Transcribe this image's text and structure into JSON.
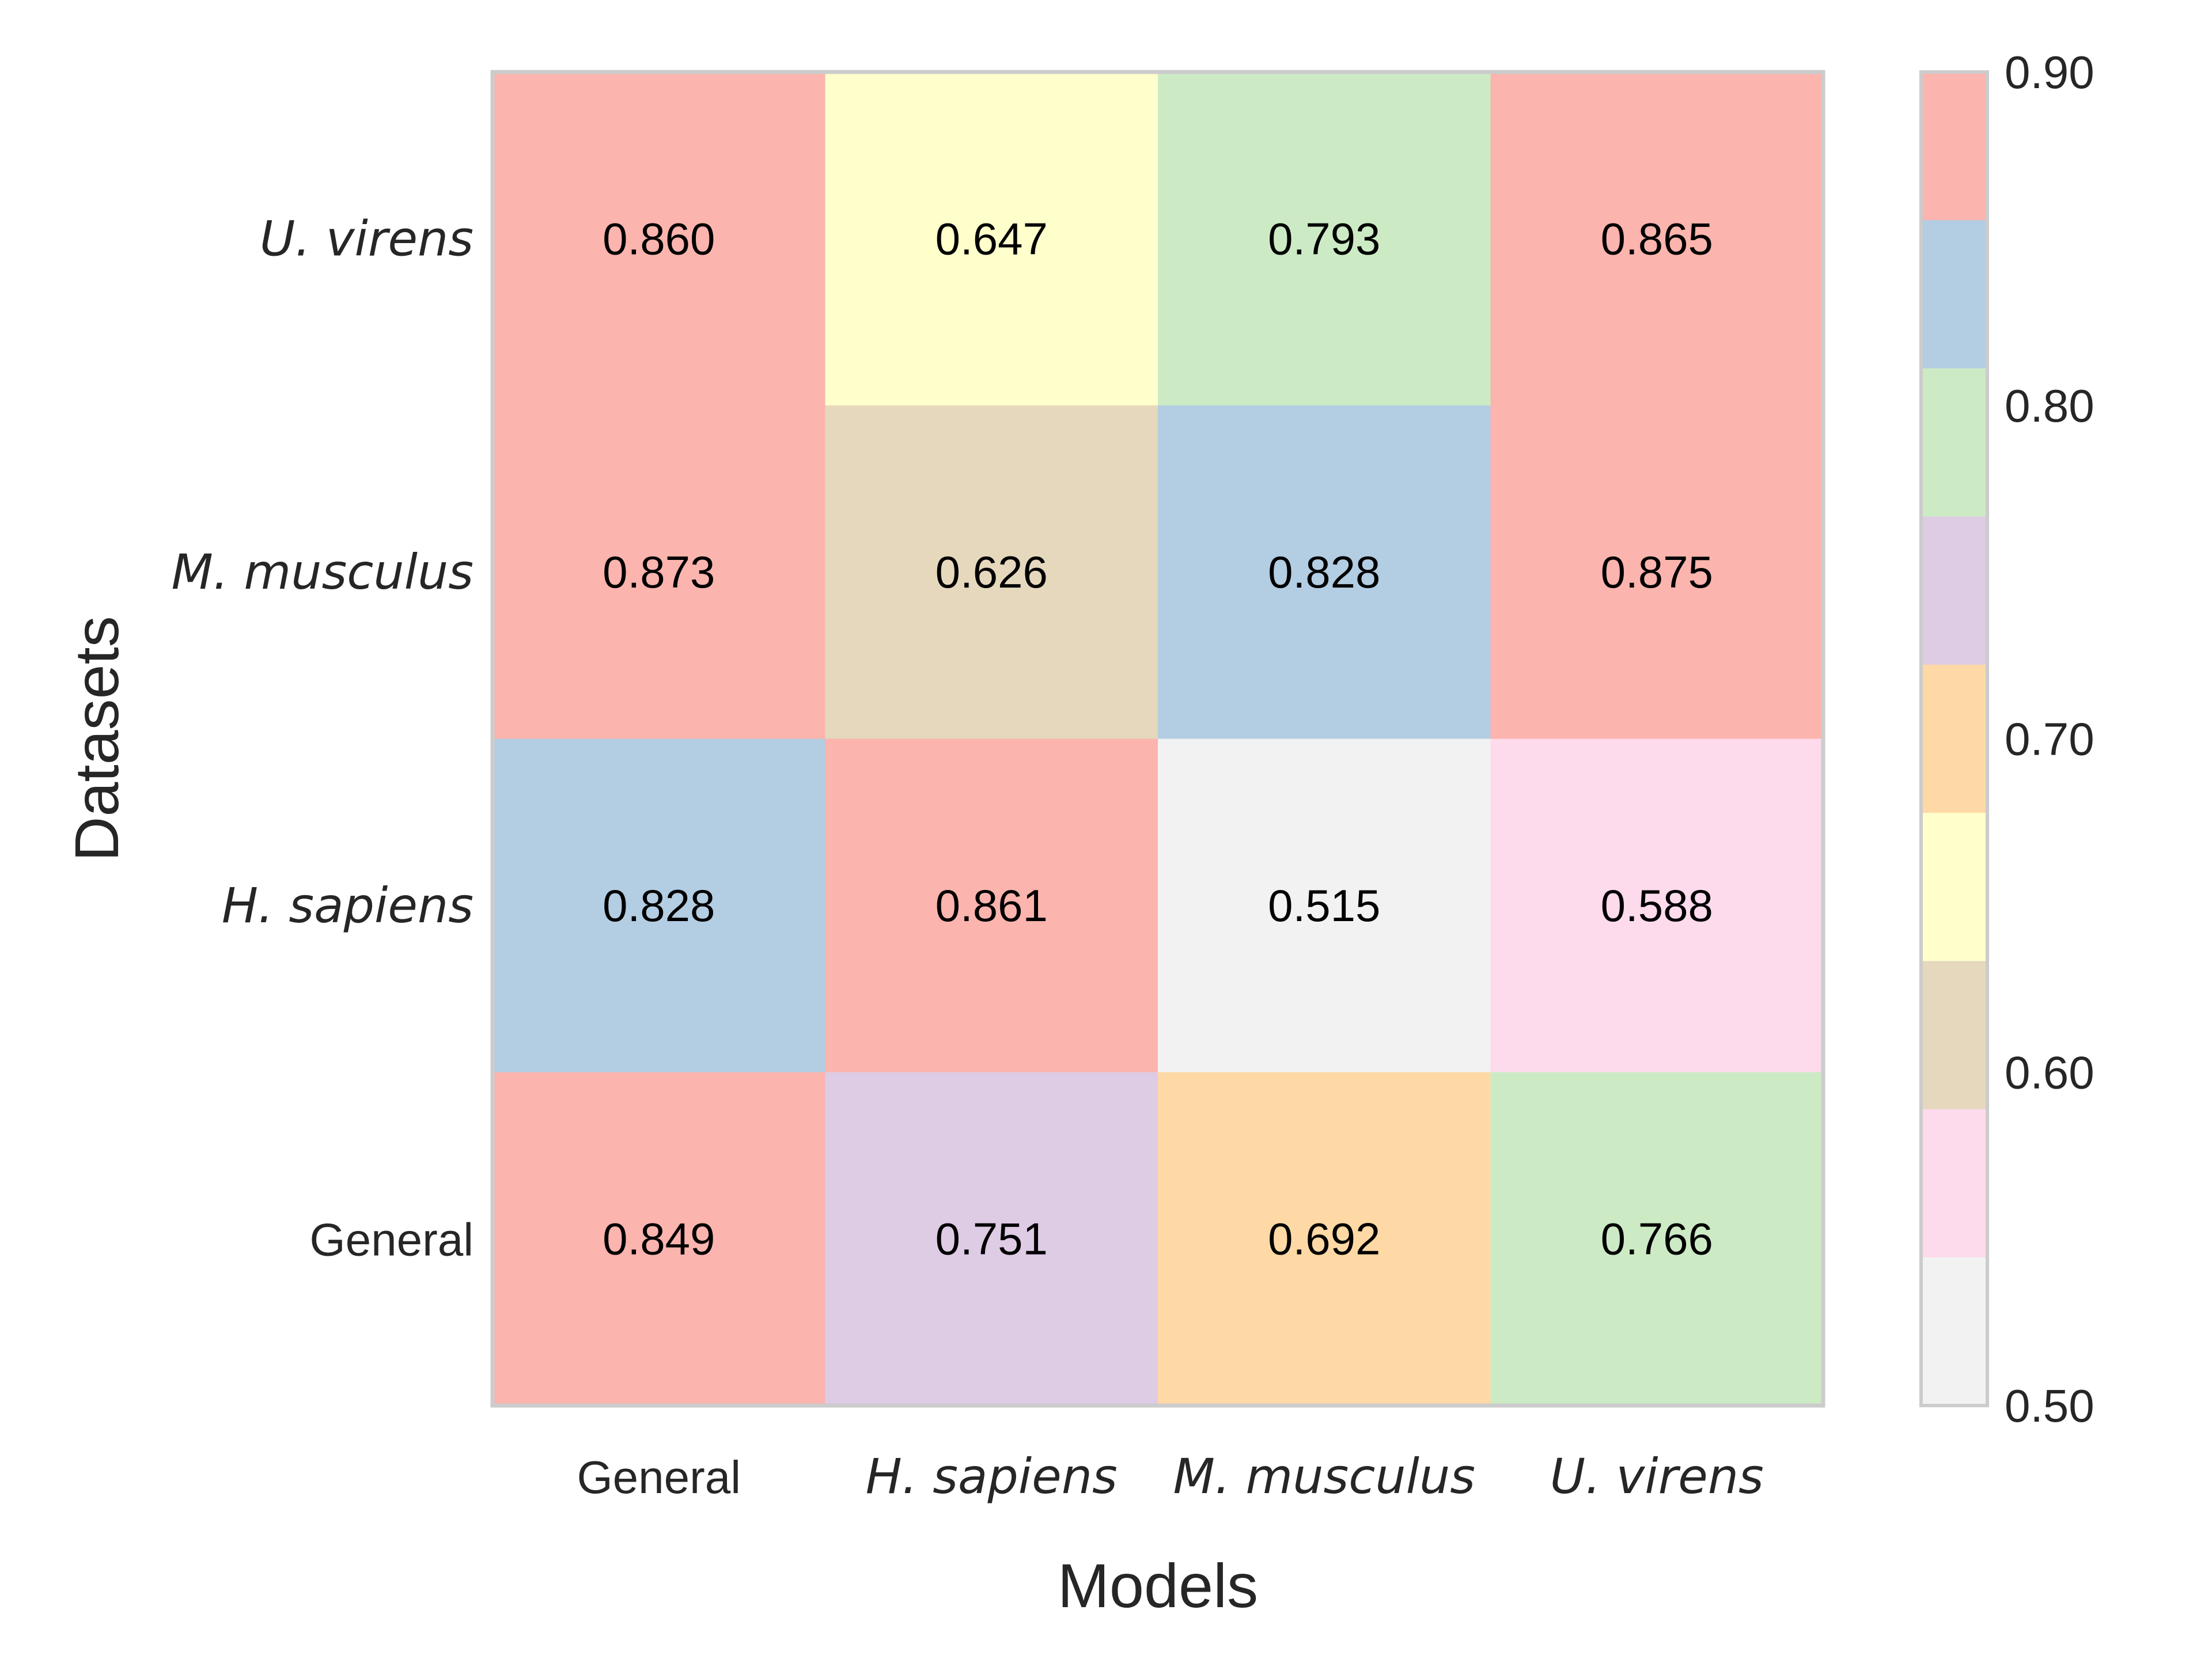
{
  "chart_data": {
    "type": "heatmap",
    "xlabel": "Models",
    "ylabel": "Datasets",
    "x_categories": [
      "General",
      "H. sapiens",
      "M. musculus",
      "U. virens"
    ],
    "y_categories_top_to_bottom": [
      "U. virens",
      "M. musculus",
      "H. sapiens",
      "General"
    ],
    "values_top_to_bottom": [
      [
        0.86,
        0.647,
        0.793,
        0.865
      ],
      [
        0.873,
        0.626,
        0.828,
        0.875
      ],
      [
        0.828,
        0.861,
        0.515,
        0.588
      ],
      [
        0.849,
        0.751,
        0.692,
        0.766
      ]
    ],
    "value_labels_top_to_bottom": [
      [
        "0.860",
        "0.647",
        "0.793",
        "0.865"
      ],
      [
        "0.873",
        "0.626",
        "0.828",
        "0.875"
      ],
      [
        "0.828",
        "0.861",
        "0.515",
        "0.588"
      ],
      [
        "0.849",
        "0.751",
        "0.692",
        "0.766"
      ]
    ],
    "italic_categories": [
      "H. sapiens",
      "M. musculus",
      "U. virens"
    ],
    "colorbar": {
      "range": [
        0.5,
        0.9
      ],
      "ticks": [
        0.9,
        0.8,
        0.7,
        0.6,
        0.5
      ],
      "tick_labels": [
        "0.90",
        "0.80",
        "0.70",
        "0.60",
        "0.50"
      ],
      "bins_top_to_bottom": [
        "#fbb4ae",
        "#b3cde3",
        "#ccebc5",
        "#decbe4",
        "#fed9a6",
        "#ffffcc",
        "#e5d8bd",
        "#fddaec",
        "#f2f2f2"
      ]
    },
    "cell_colors_top_to_bottom": [
      [
        "#fbb4ae",
        "#ffffcc",
        "#ccebc5",
        "#fbb4ae"
      ],
      [
        "#fbb4ae",
        "#e5d8bd",
        "#b3cde3",
        "#fbb4ae"
      ],
      [
        "#b3cde3",
        "#fbb4ae",
        "#f2f2f2",
        "#fddaec"
      ],
      [
        "#fbb4ae",
        "#decbe4",
        "#fed9a6",
        "#ccebc5"
      ]
    ],
    "border_color": "#cccccc",
    "grid": false
  }
}
